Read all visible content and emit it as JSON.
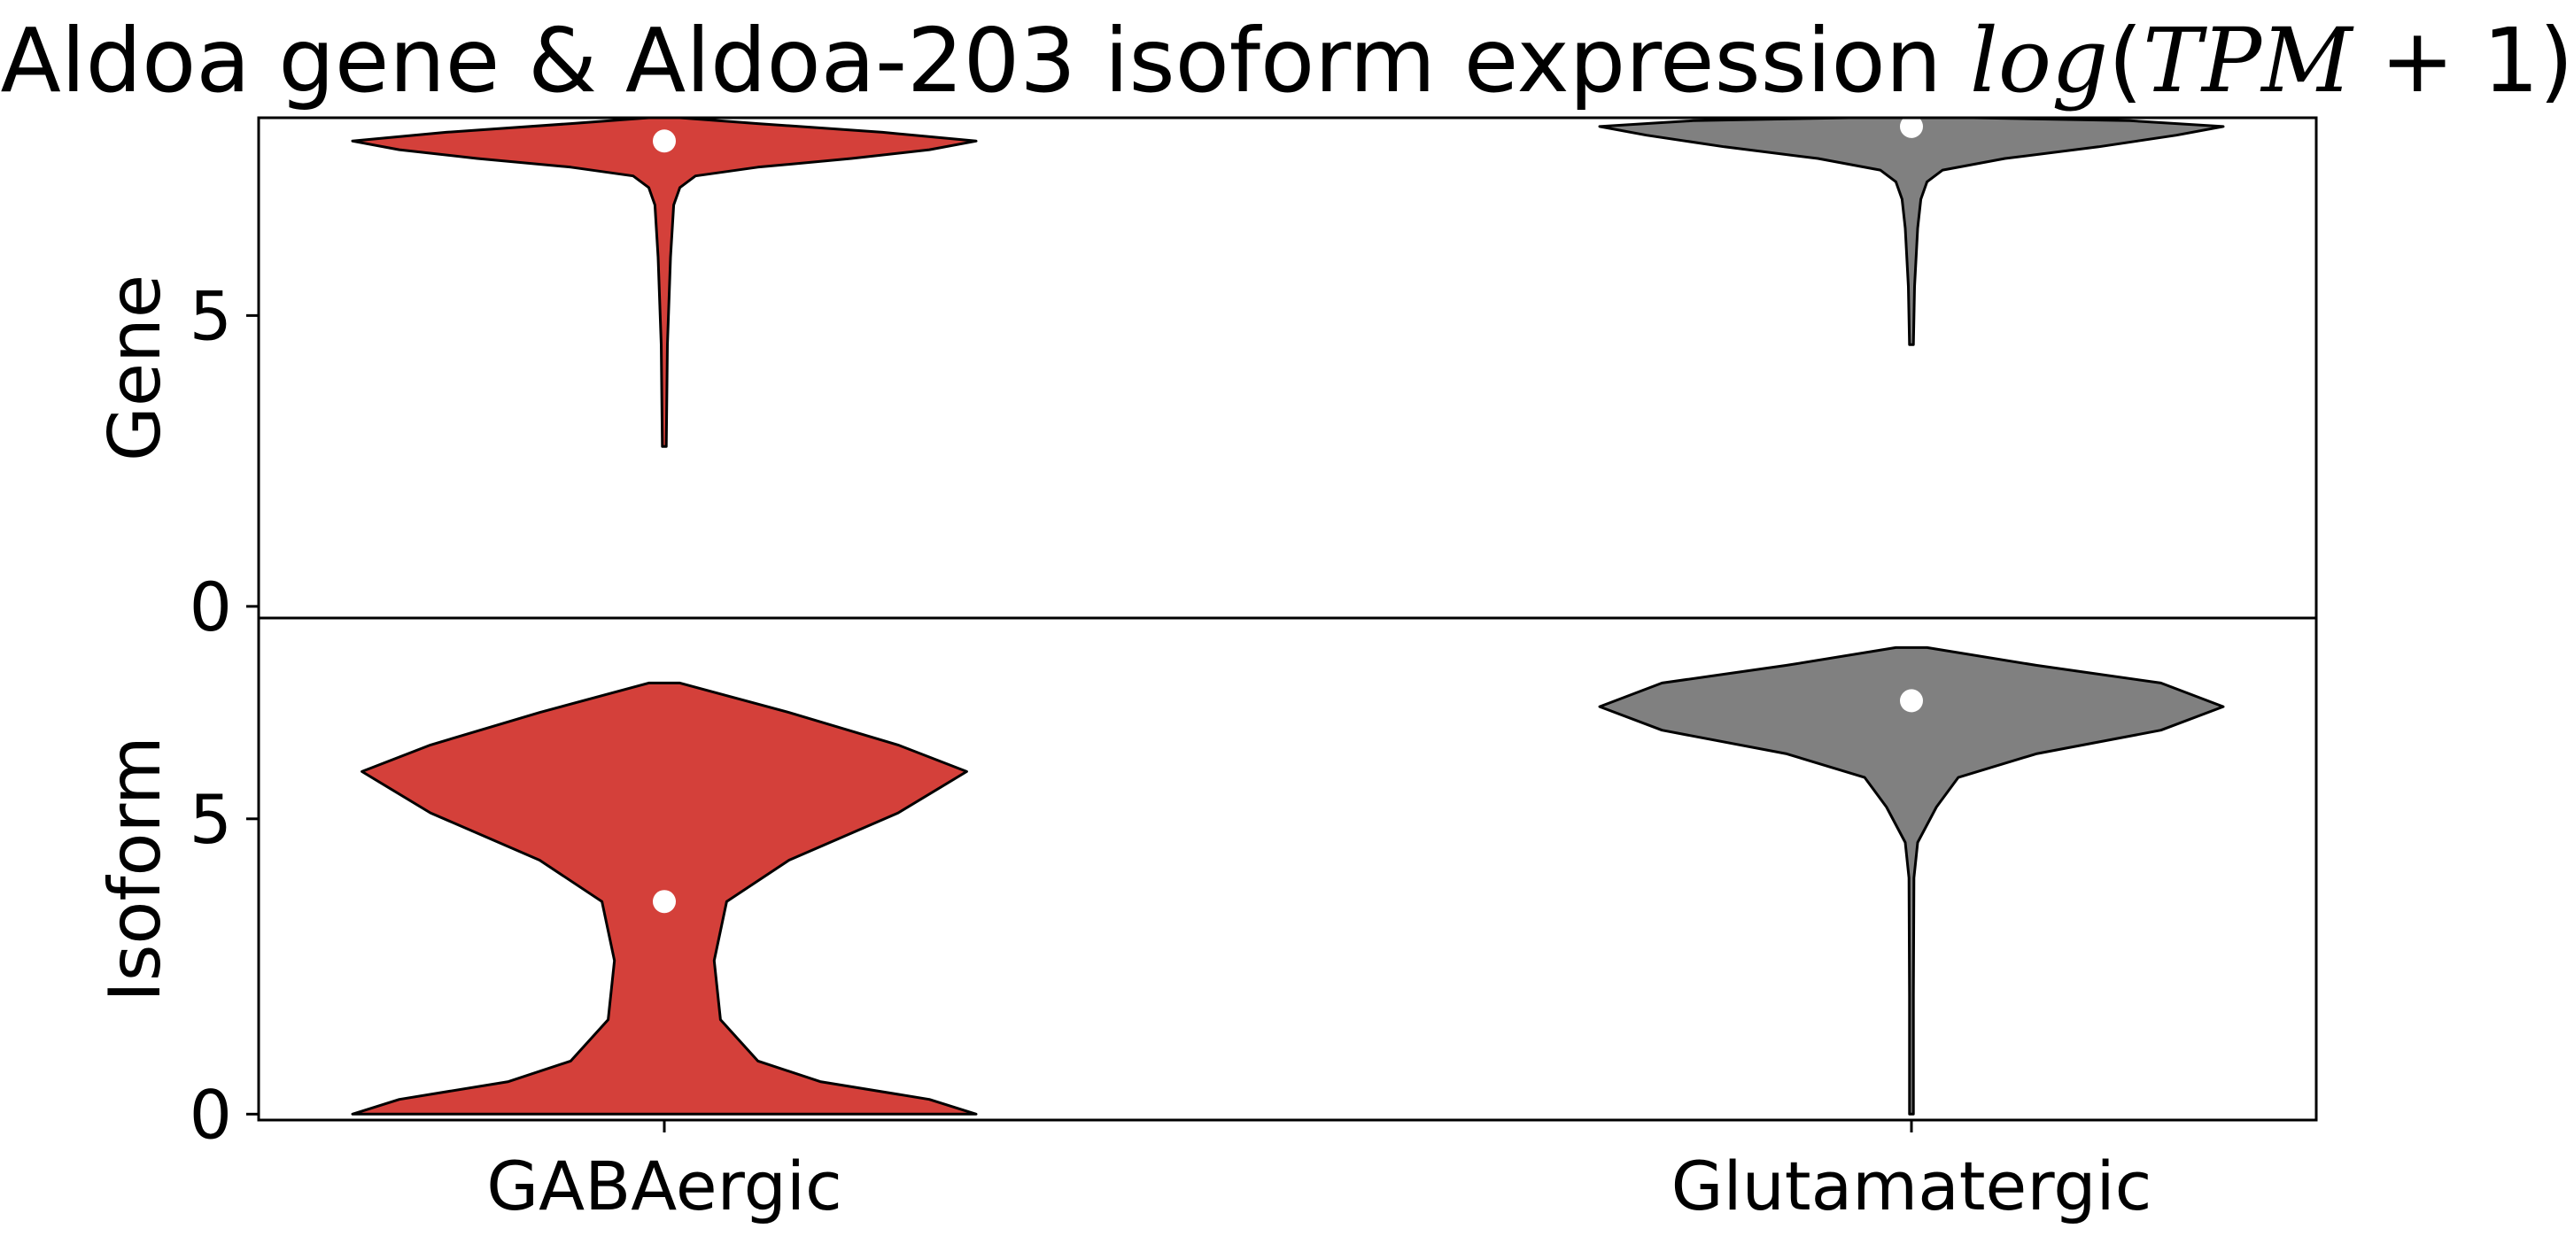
{
  "chart_data": {
    "type": "violin",
    "title": {
      "prefix": "Aldoa gene & Aldoa-203 isoform expression ",
      "math_func": "log",
      "math_open": "(",
      "math_var": "TPM",
      "math_rest": " + 1)"
    },
    "categories": [
      "GABAergic",
      "Glutamatergic"
    ],
    "colors": {
      "GABAergic": "#d4403a",
      "Glutamatergic": "#808080",
      "median_dot": "#ffffff",
      "outline": "#000000"
    },
    "panels": [
      {
        "name": "gene",
        "ylabel": "Gene",
        "ylim": [
          -0.2,
          8.4
        ],
        "yticks": [
          0,
          5
        ],
        "ytick_labels": [
          "0",
          "5"
        ],
        "violins": [
          {
            "category": "GABAergic",
            "median": 8.0,
            "profile": [
              [
                2.75,
                0
              ],
              [
                4.5,
                0.01
              ],
              [
                6.0,
                0.02
              ],
              [
                6.9,
                0.03
              ],
              [
                7.2,
                0.05
              ],
              [
                7.4,
                0.1
              ],
              [
                7.55,
                0.3
              ],
              [
                7.7,
                0.6
              ],
              [
                7.85,
                0.85
              ],
              [
                8.0,
                1.0
              ],
              [
                8.15,
                0.7
              ],
              [
                8.3,
                0.3
              ],
              [
                8.4,
                0.05
              ]
            ]
          },
          {
            "category": "Glutamatergic",
            "median": 8.25,
            "profile": [
              [
                4.5,
                0
              ],
              [
                5.5,
                0.01
              ],
              [
                6.5,
                0.02
              ],
              [
                7.0,
                0.03
              ],
              [
                7.3,
                0.05
              ],
              [
                7.5,
                0.1
              ],
              [
                7.7,
                0.3
              ],
              [
                7.9,
                0.6
              ],
              [
                8.1,
                0.85
              ],
              [
                8.25,
                1.0
              ],
              [
                8.35,
                0.7
              ],
              [
                8.4,
                0.2
              ]
            ]
          }
        ]
      },
      {
        "name": "isoform",
        "ylabel": "Isoform",
        "ylim": [
          -0.1,
          8.4
        ],
        "yticks": [
          0,
          5
        ],
        "ytick_labels": [
          "0",
          "5"
        ],
        "violins": [
          {
            "category": "GABAergic",
            "median": 3.6,
            "profile": [
              [
                0.0,
                1.0
              ],
              [
                0.25,
                0.85
              ],
              [
                0.55,
                0.5
              ],
              [
                0.9,
                0.3
              ],
              [
                1.6,
                0.18
              ],
              [
                2.6,
                0.16
              ],
              [
                3.6,
                0.2
              ],
              [
                4.3,
                0.4
              ],
              [
                5.1,
                0.75
              ],
              [
                5.8,
                0.97
              ],
              [
                6.25,
                0.75
              ],
              [
                6.8,
                0.4
              ],
              [
                7.3,
                0.05
              ]
            ]
          },
          {
            "category": "Glutamatergic",
            "median": 7.0,
            "profile": [
              [
                0.0,
                0
              ],
              [
                2.0,
                0.005
              ],
              [
                4.0,
                0.008
              ],
              [
                4.6,
                0.02
              ],
              [
                5.2,
                0.08
              ],
              [
                5.7,
                0.15
              ],
              [
                6.1,
                0.4
              ],
              [
                6.5,
                0.8
              ],
              [
                6.9,
                1.0
              ],
              [
                7.3,
                0.8
              ],
              [
                7.6,
                0.4
              ],
              [
                7.9,
                0.05
              ]
            ]
          }
        ]
      }
    ]
  }
}
